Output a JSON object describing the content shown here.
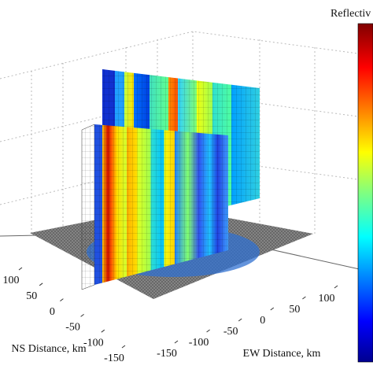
{
  "chart_data": {
    "type": "surface3d",
    "colorbar_label": "Reflectiv",
    "xlabel": "NS Distance, km",
    "ylabel": "EW Distance, km",
    "xlim": [
      -150,
      100
    ],
    "xticks": [
      100,
      50,
      0,
      -50,
      -100,
      -150
    ],
    "ylim": [
      -150,
      100
    ],
    "yticks": [
      -150,
      -100,
      -50,
      0,
      50,
      100
    ],
    "colormap": "jet",
    "grid": true
  }
}
